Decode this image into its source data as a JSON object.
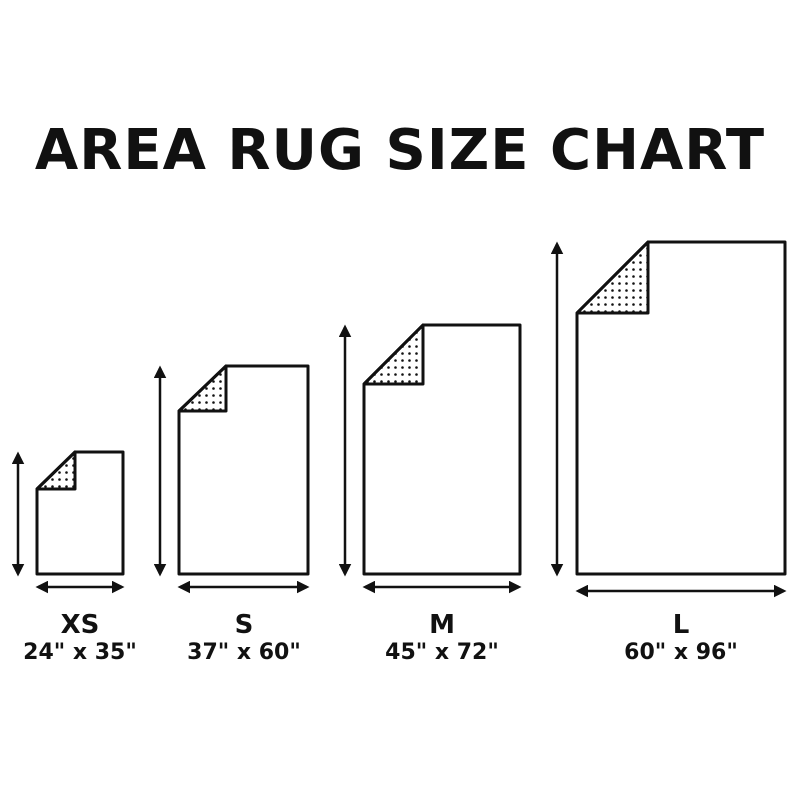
{
  "title": "AREA RUG SIZE CHART",
  "sizes": [
    {
      "name": "XS",
      "dimensions": "24\" x 35\"",
      "width_in": 24,
      "length_in": 35
    },
    {
      "name": "S",
      "dimensions": "37\" x 60\"",
      "width_in": 37,
      "length_in": 60
    },
    {
      "name": "M",
      "dimensions": "45\" x 72\"",
      "width_in": 45,
      "length_in": 72
    },
    {
      "name": "L",
      "dimensions": "60\" x 96\"",
      "width_in": 60,
      "length_in": 96
    }
  ],
  "colors": {
    "line": "#111111",
    "background": "#ffffff"
  }
}
